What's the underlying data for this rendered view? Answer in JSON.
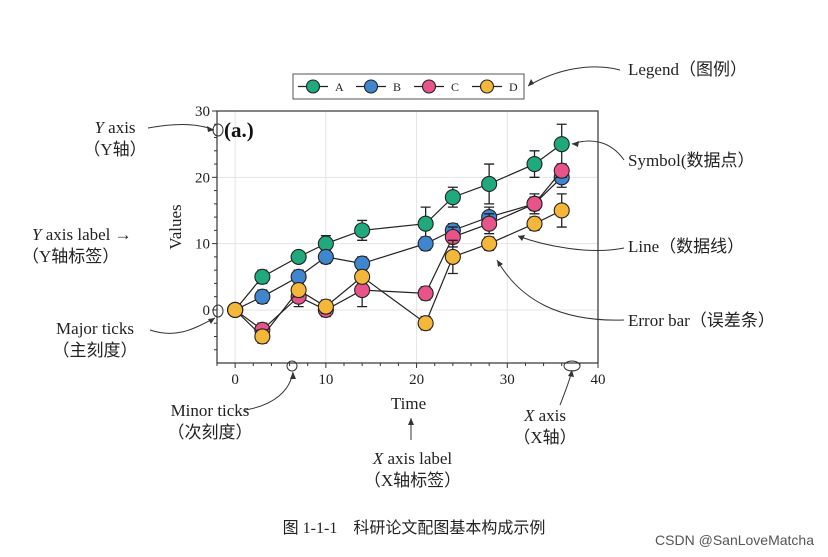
{
  "chart_data": {
    "type": "line",
    "panel_label": "(a.)",
    "xlabel": "Time",
    "ylabel": "Values",
    "xlim": [
      -2,
      40
    ],
    "ylim": [
      -8,
      30
    ],
    "xticks": [
      "0",
      "10",
      "20",
      "30",
      "40"
    ],
    "yticks": [
      "0",
      "10",
      "20",
      "30"
    ],
    "grid": true,
    "legend_position": "top-center (outside)",
    "x": [
      0,
      3,
      7,
      10,
      14,
      21,
      24,
      28,
      33,
      36
    ],
    "series": [
      {
        "name": "A",
        "color": "#1fa97d",
        "values": [
          0,
          5,
          8,
          10,
          12,
          13,
          17,
          19,
          22,
          25
        ],
        "errors": [
          0,
          1,
          0.8,
          1.2,
          1.5,
          2.5,
          1.5,
          3,
          2,
          3
        ]
      },
      {
        "name": "B",
        "color": "#3f86cf",
        "values": [
          0,
          2,
          5,
          8,
          7,
          10,
          12,
          14,
          16,
          20
        ],
        "errors": [
          0,
          1,
          1,
          1,
          1,
          1,
          1,
          1.5,
          1.5,
          1.5
        ]
      },
      {
        "name": "C",
        "color": "#e8548a",
        "values": [
          0,
          -3,
          2,
          0,
          3,
          2.5,
          11,
          13,
          16,
          21
        ],
        "errors": [
          0,
          1,
          1.5,
          1,
          2.5,
          1,
          1.5,
          1.5,
          1,
          1
        ]
      },
      {
        "name": "D",
        "color": "#f4b73a",
        "values": [
          0,
          -4,
          3,
          0.5,
          5,
          -2,
          8,
          10,
          13,
          15
        ],
        "errors": [
          0,
          1,
          1,
          1,
          1,
          1,
          2.5,
          1,
          1,
          2.5
        ]
      }
    ]
  },
  "annotations": {
    "legend": "Legend（图例）",
    "symbol": "Symbol(数据点）",
    "line": "Line（数据线）",
    "error_bar": "Error bar（误差条）",
    "y_axis_en_i": "Y",
    "y_axis_en": " axis",
    "y_axis_cn": "（Y轴）",
    "y_label_en_i": "Y",
    "y_label_en": " axis label →",
    "y_label_cn": "（Y轴标签）",
    "major_en": "Major ticks",
    "major_cn": "（主刻度）",
    "minor_en": "Minor ticks",
    "minor_cn": "（次刻度）",
    "x_label_en_i": "X",
    "x_label_en": " axis label",
    "x_label_cn": "（X轴标签）",
    "x_axis_en_i": "X",
    "x_axis_en": " axis",
    "x_axis_cn": "（X轴）"
  },
  "caption": "图 1-1-1　科研论文配图基本构成示例",
  "watermark": "CSDN @SanLoveMatcha"
}
